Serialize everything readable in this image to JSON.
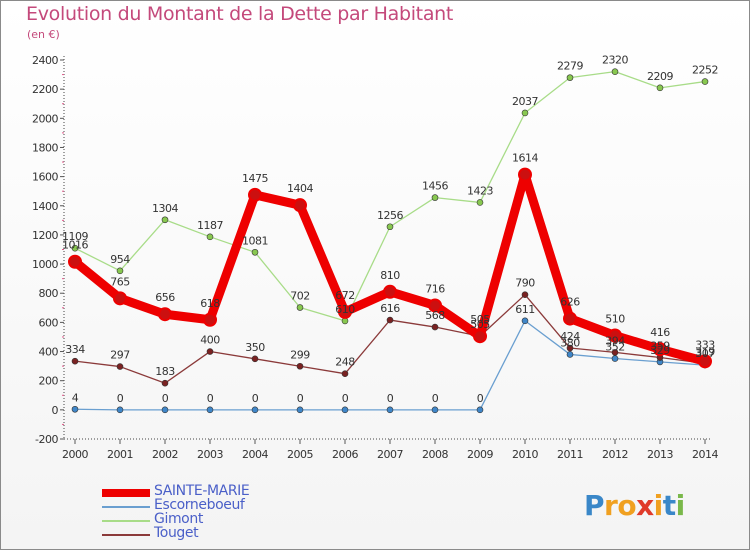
{
  "title": "Evolution du Montant de la Dette par Habitant",
  "subtitle": "(en €)",
  "logo": {
    "text": "Proxiti",
    "letters": [
      "P",
      "r",
      "o",
      "x",
      "i",
      "t",
      "i"
    ],
    "colors": [
      "#3a87c8",
      "#f0a020",
      "#f0a020",
      "#e03a2a",
      "#f0a020",
      "#3a87c8",
      "#7ab84a"
    ]
  },
  "chart_data": {
    "type": "line",
    "categories": [
      "2000",
      "2001",
      "2002",
      "2003",
      "2004",
      "2005",
      "2006",
      "2007",
      "2008",
      "2009",
      "2010",
      "2011",
      "2012",
      "2013",
      "2014"
    ],
    "yticks": [
      "-200",
      "0",
      "200",
      "400",
      "600",
      "800",
      "1000",
      "1200",
      "1400",
      "1600",
      "1800",
      "2000",
      "2200",
      "2400"
    ],
    "ylim": [
      -200,
      2400
    ],
    "grid": false,
    "legend_position": "bottom-left",
    "series": [
      {
        "name": "SAINTE-MARIE",
        "color": "#ee0000",
        "marker_color": "#cc1010",
        "values": [
          1016,
          765,
          656,
          618,
          1475,
          1404,
          672,
          810,
          716,
          505,
          1614,
          626,
          510,
          416,
          333
        ],
        "labels": [
          "1016",
          "765",
          "656",
          "618",
          "1475",
          "1404",
          "672",
          "810",
          "716",
          "505",
          "1614",
          "626",
          "510",
          "416",
          "333"
        ]
      },
      {
        "name": "Escorneboeuf",
        "color": "#6a9fd0",
        "marker_color": "#3f86c8",
        "values": [
          4,
          0,
          0,
          0,
          0,
          0,
          0,
          0,
          0,
          0,
          611,
          380,
          352,
          329,
          307
        ],
        "labels": [
          "4",
          "0",
          "0",
          "0",
          "0",
          "0",
          "0",
          "0",
          "0",
          "0",
          "611",
          "380",
          "352",
          "329",
          "307"
        ]
      },
      {
        "name": "Gimont",
        "color": "#a8dc88",
        "marker_color": "#88c850",
        "values": [
          1109,
          954,
          1304,
          1187,
          1081,
          702,
          610,
          1256,
          1456,
          1423,
          2037,
          2279,
          2320,
          2209,
          2252
        ],
        "labels": [
          "1109",
          "954",
          "1304",
          "1187",
          "1081",
          "702",
          "610",
          "1256",
          "1456",
          "1423",
          "2037",
          "2279",
          "2320",
          "2209",
          "2252"
        ]
      },
      {
        "name": "Touget",
        "color": "#8b3a3a",
        "marker_color": "#7a2222",
        "values": [
          334,
          297,
          183,
          400,
          350,
          299,
          248,
          616,
          568,
          505,
          790,
          424,
          394,
          359,
          319
        ],
        "labels": [
          "334",
          "297",
          "183",
          "400",
          "350",
          "299",
          "248",
          "616",
          "568",
          "505",
          "790",
          "424",
          "394",
          "359",
          "319"
        ]
      }
    ]
  }
}
